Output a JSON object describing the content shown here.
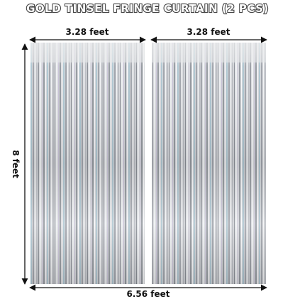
{
  "title": "GOLD TINSEL FRINGE CURTAIN (2 PCS)",
  "dimensions": {
    "left_width": "3.28 feet",
    "right_width": "3.28 feet",
    "height": "8 feet",
    "total_width": "6.56 feet"
  }
}
